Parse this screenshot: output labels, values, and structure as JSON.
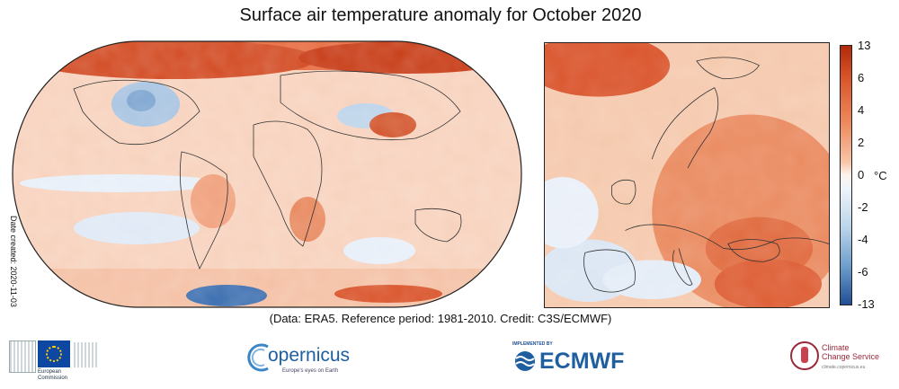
{
  "title": "Surface air temperature anomaly for October 2020",
  "credit": "(Data: ERA5.  Reference period: 1981-2010.  Credit: C3S/ECMWF)",
  "date_created": "Date created: 2020-11-03",
  "colorbar": {
    "unit": "°C",
    "ticks": [
      "13",
      "6",
      "4",
      "2",
      "0",
      "-2",
      "-4",
      "-6",
      "-13"
    ],
    "warm_color": "#b0290a",
    "neutral_color": "#fdf3ee",
    "cool_color": "#1f4f95"
  },
  "logos": {
    "ec": {
      "line1": "European",
      "line2": "Commission"
    },
    "copernicus": {
      "name": "opernicus",
      "tagline": "Europe's eyes on Earth"
    },
    "ecmwf": {
      "prefix": "IMPLEMENTED BY",
      "name": "ECMWF"
    },
    "c3s": {
      "line1": "Climate",
      "line2": "Change Service",
      "tagline": "climate.copernicus.eu"
    }
  }
}
